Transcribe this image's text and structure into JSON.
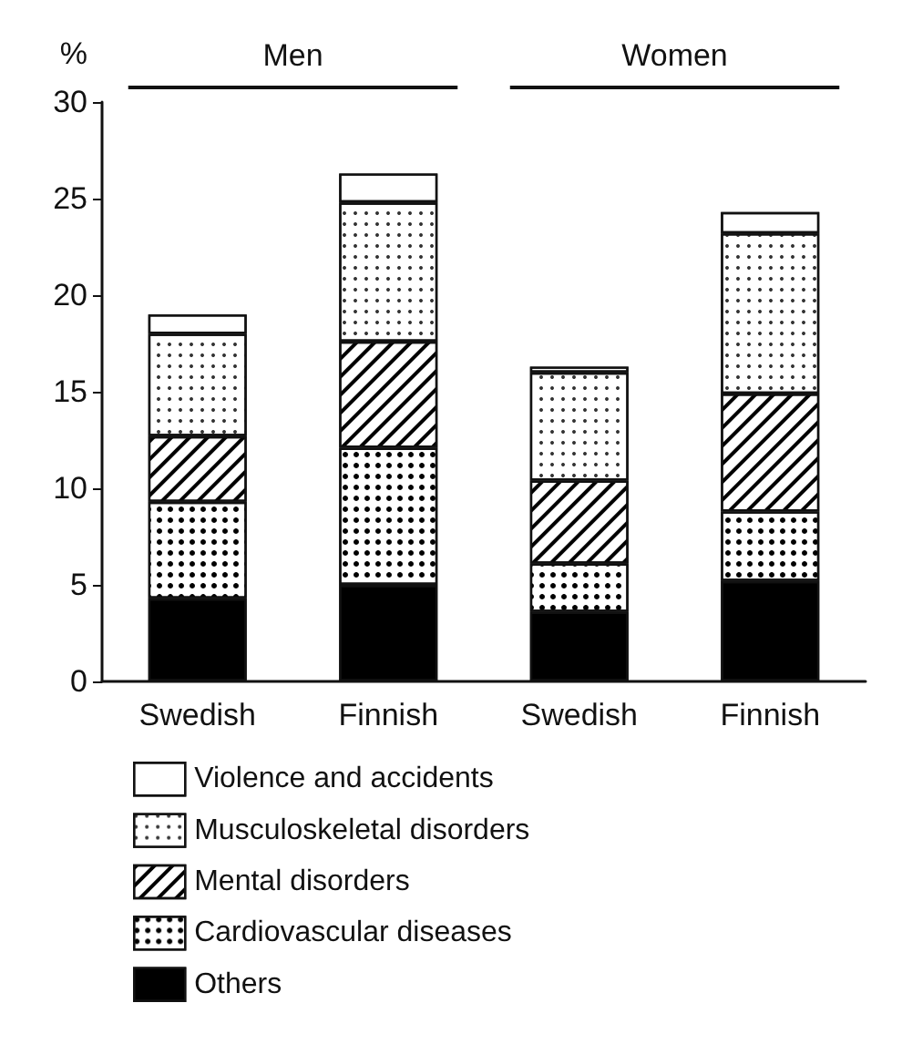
{
  "chart_data": {
    "type": "bar",
    "stacked": true,
    "ylabel": "%",
    "categories": [
      "Swedish",
      "Finnish",
      "Swedish",
      "Finnish"
    ],
    "annotations": [
      "Men",
      "Women"
    ],
    "series": [
      {
        "name": "Others",
        "color": "#000000",
        "values": [
          4.3,
          5.0,
          3.6,
          5.2
        ]
      },
      {
        "name": "Cardiovascular diseases",
        "color": "#ffffff",
        "values": [
          5.0,
          7.1,
          2.5,
          3.6
        ]
      },
      {
        "name": "Mental disorders",
        "color": "#ffffff",
        "values": [
          3.4,
          5.5,
          4.3,
          6.1
        ]
      },
      {
        "name": "Musculoskeletal disorders",
        "color": "#ffffff",
        "values": [
          5.3,
          7.2,
          5.6,
          8.3
        ]
      },
      {
        "name": "Violence and accidents",
        "color": "#ffffff",
        "values": [
          1.0,
          1.5,
          0.3,
          1.1
        ]
      }
    ],
    "ylim": [
      0,
      30
    ],
    "yticks": [
      0,
      5,
      10,
      15,
      20,
      25,
      30
    ],
    "grid": false,
    "legend": "bottom left"
  }
}
